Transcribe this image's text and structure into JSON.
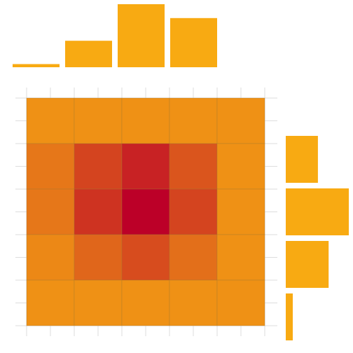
{
  "chart_data": {
    "type": "heatmap",
    "grid": {
      "rows": 5,
      "cols": 5,
      "visible": true
    },
    "cells": [
      [
        0.15,
        0.15,
        0.15,
        0.15,
        0.15
      ],
      [
        0.3,
        0.6,
        0.8,
        0.5,
        0.15
      ],
      [
        0.3,
        0.7,
        1.0,
        0.6,
        0.15
      ],
      [
        0.2,
        0.4,
        0.55,
        0.35,
        0.15
      ],
      [
        0.15,
        0.15,
        0.15,
        0.15,
        0.15
      ]
    ],
    "marginal_top": {
      "type": "bar",
      "orientation": "vertical",
      "values": [
        0.05,
        0.42,
        1.0,
        0.78,
        0.0
      ]
    },
    "marginal_right": {
      "type": "bar",
      "orientation": "horizontal",
      "values": [
        0.51,
        1.0,
        0.68,
        0.07,
        0.0
      ]
    },
    "colors": {
      "low": "#F8AA12",
      "high": "#BC0028",
      "bar": "#F8AA12",
      "grid": "#dddddd",
      "cell_border": "#a07830"
    }
  }
}
